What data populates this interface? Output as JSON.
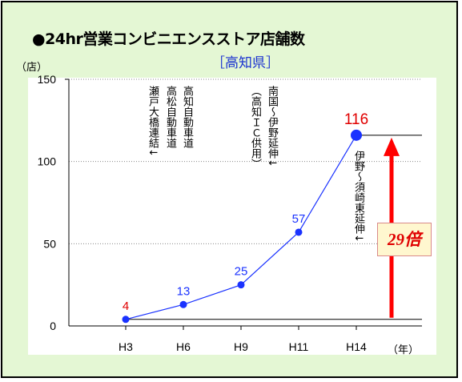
{
  "title": "●24hr営業コンビニエンスストア店舗数",
  "subtitle": "［高知県］",
  "y_unit": "（店）",
  "x_unit": "（年）",
  "annotations": [
    {
      "id": "a1",
      "text": "高知自動車道"
    },
    {
      "id": "a2",
      "text": "高松自動車道"
    },
    {
      "id": "a3",
      "text": "瀬戸大橋連結↓"
    },
    {
      "id": "a4",
      "text": "南国～伊野延伸↓"
    },
    {
      "id": "a5",
      "text": "（高知ＩＣ供用）"
    },
    {
      "id": "a6",
      "text": "伊野～須崎東延伸↓"
    }
  ],
  "growth_label": "29倍",
  "colors": {
    "background": "#e4f7d4",
    "line": "#1a32ff",
    "point": "#1a32ff",
    "arrow": "#ff0000",
    "first_label": "#e00000",
    "last_label": "#e00000"
  },
  "chart_data": {
    "type": "line",
    "title": "●24hr営業コンビニエンスストア店舗数",
    "subtitle": "［高知県］",
    "categories": [
      "H3",
      "H6",
      "H9",
      "H11",
      "H14"
    ],
    "series": [
      {
        "values": [
          4,
          13,
          25,
          57,
          116
        ]
      }
    ],
    "ylim": [
      0,
      150
    ],
    "yticks": [
      0,
      50,
      100,
      150
    ],
    "grid": true
  }
}
